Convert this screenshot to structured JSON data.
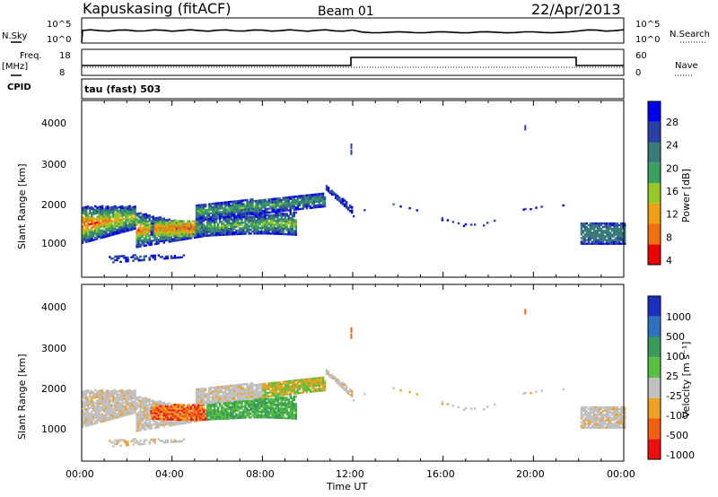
{
  "header": {
    "station": "Kapuskasing (fitACF)",
    "beam": "Beam 01",
    "date": "22/Apr/2013"
  },
  "strips": {
    "nsky_label": "N.Sky",
    "nsky_ticks": [
      "10^5",
      "10^0"
    ],
    "nsearch_label": "N.Search",
    "nsearch_ticks": [
      "10^5",
      "10^0"
    ],
    "freq_label_1": "Freq.",
    "freq_label_2": "[MHz]",
    "freq_ticks": [
      "18",
      "8"
    ],
    "nave_label": "Nave",
    "nave_ticks": [
      "60",
      "0"
    ],
    "cpid_label": "CPID",
    "cpid_text": "tau (fast) 503"
  },
  "chart_data": [
    {
      "type": "heatmap",
      "panel": "power",
      "ylabel": "Slant Range [km]",
      "ylim": [
        180,
        4500
      ],
      "yticks": [
        "4000",
        "3000",
        "2000",
        "1000"
      ],
      "colorbar_label": "Power [dB]",
      "colorbar_ticks": [
        "28",
        "24",
        "20",
        "16",
        "12",
        "8",
        "4"
      ],
      "colors": [
        "#0000ee",
        "#2a3fa8",
        "#3a7a7a",
        "#38a060",
        "#98c828",
        "#f0a010",
        "#f07010",
        "#ee0000"
      ]
    },
    {
      "type": "heatmap",
      "panel": "velocity",
      "ylabel": "Slant Range [km]",
      "ylim": [
        180,
        4500
      ],
      "yticks": [
        "4000",
        "3000",
        "2000",
        "1000"
      ],
      "colorbar_label": "Velocity [m s⁻¹]",
      "colorbar_ticks": [
        "1000",
        "500",
        "100",
        "25",
        "-25",
        "-100",
        "-500",
        "-1000"
      ],
      "colors": [
        "#1a30c0",
        "#2f70c0",
        "#3a9a5a",
        "#58c040",
        "#c0c0c0",
        "#f0a020",
        "#f06010",
        "#ee1010"
      ]
    }
  ],
  "xaxis": {
    "label": "Time UT",
    "ticks": [
      "00:00",
      "04:00",
      "08:00",
      "12:00",
      "16:00",
      "20:00",
      "00:00"
    ],
    "range_hours": [
      0,
      24
    ]
  }
}
